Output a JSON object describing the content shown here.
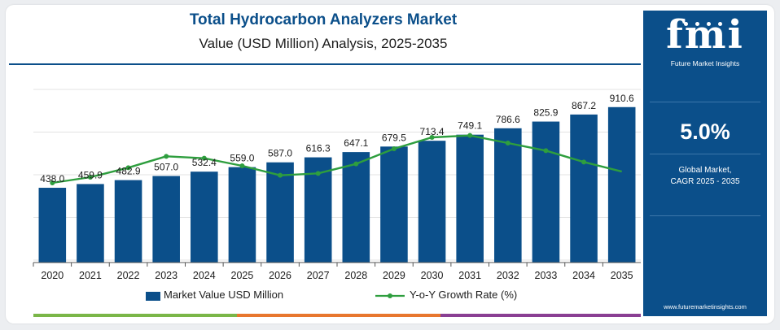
{
  "header": {
    "title": "Total Hydrocarbon Analyzers Market",
    "subtitle": "Value (USD Million) Analysis, 2025-2035"
  },
  "side_panel": {
    "logo_text": "fmi",
    "logo_subtext": "Future Market Insights",
    "cagr_value": "5.0%",
    "cagr_label_line1": "Global Market,",
    "cagr_label_line2": "CAGR 2025 - 2035",
    "website": "www.futuremarketinsights.com"
  },
  "legend": {
    "bar_label": "Market Value USD Million",
    "line_label": "Y-o-Y Growth Rate (%)"
  },
  "colors": {
    "bar": "#0b4f8a",
    "line": "#2e9e3e",
    "panel": "#0b4f8a",
    "title": "#0b4f8a",
    "footer_green": "#7ab648",
    "footer_orange": "#e8772e",
    "footer_purple": "#8a3f93"
  },
  "chart_data": {
    "type": "bar",
    "categories": [
      "2020",
      "2021",
      "2022",
      "2023",
      "2024",
      "2025",
      "2026",
      "2027",
      "2028",
      "2029",
      "2030",
      "2031",
      "2032",
      "2033",
      "2034",
      "2035"
    ],
    "series": [
      {
        "name": "Market Value USD Million",
        "type": "bar",
        "values": [
          438.0,
          459.9,
          482.9,
          507.0,
          532.4,
          559.0,
          587.0,
          616.3,
          647.1,
          679.5,
          713.4,
          749.1,
          786.6,
          825.9,
          867.2,
          910.6
        ],
        "labels": [
          "438.0",
          "459.9",
          "482.9",
          "507.0",
          "532.4",
          "559.0",
          "587.0",
          "616.3",
          "647.1",
          "679.5",
          "713.4",
          "749.1",
          "786.6",
          "825.9",
          "867.2",
          "910.6"
        ]
      },
      {
        "name": "Y-o-Y Growth Rate (%)",
        "type": "line",
        "values": [
          4.2,
          4.5,
          5.0,
          5.6,
          5.5,
          5.1,
          4.6,
          4.7,
          5.2,
          6.0,
          6.6,
          6.7,
          6.3,
          5.9,
          5.3,
          4.8
        ]
      }
    ],
    "ylim": [
      0,
      1000
    ],
    "line_ylim": [
      0,
      9
    ],
    "grid": true,
    "legend_position": "bottom"
  }
}
